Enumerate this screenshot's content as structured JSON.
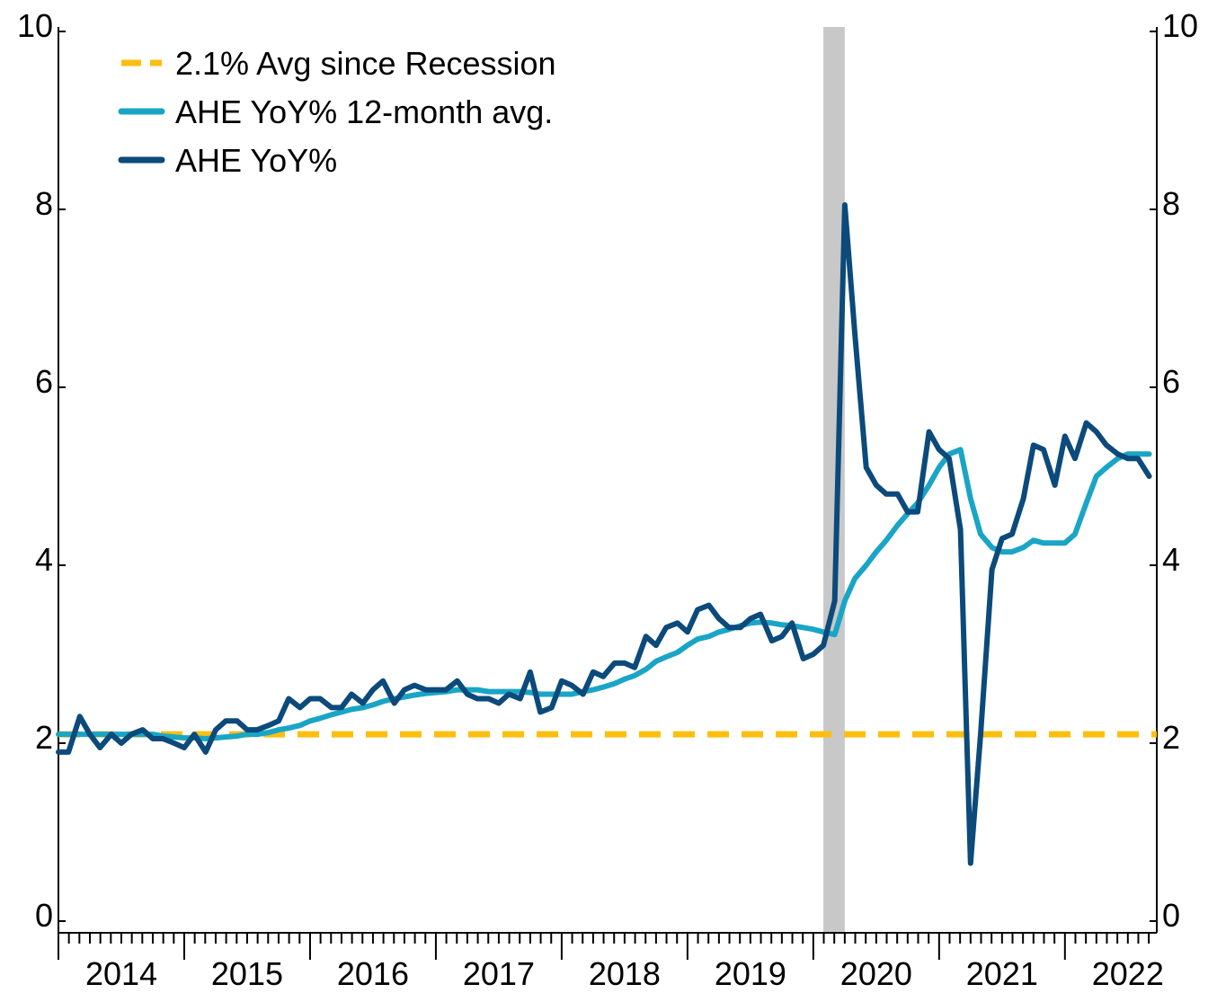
{
  "chart_data": {
    "type": "line",
    "xlim": [
      2014,
      2022.73
    ],
    "xticks": [
      2014,
      2015,
      2016,
      2017,
      2018,
      2019,
      2020,
      2021,
      2022
    ],
    "ylim": [
      0,
      10
    ],
    "yticks": [
      0,
      2,
      4,
      6,
      8,
      10
    ],
    "y2lim": [
      0,
      10
    ],
    "y2ticks": [
      0,
      2,
      4,
      6,
      8,
      10
    ],
    "legend": "upper left",
    "recession_band": {
      "x": [
        2020.08,
        2020.25
      ],
      "color": "#c8c8c8"
    },
    "hline": {
      "name": "2.1% Avg since Recession",
      "value": 2.1,
      "color": "#fcbf0f",
      "dashed": true
    },
    "x": [
      2014.0,
      2014.08,
      2014.17,
      2014.25,
      2014.33,
      2014.42,
      2014.5,
      2014.58,
      2014.67,
      2014.75,
      2014.83,
      2014.92,
      2015.0,
      2015.08,
      2015.17,
      2015.25,
      2015.33,
      2015.42,
      2015.5,
      2015.58,
      2015.67,
      2015.75,
      2015.83,
      2015.92,
      2016.0,
      2016.08,
      2016.17,
      2016.25,
      2016.33,
      2016.42,
      2016.5,
      2016.58,
      2016.67,
      2016.75,
      2016.83,
      2016.92,
      2017.0,
      2017.08,
      2017.17,
      2017.25,
      2017.33,
      2017.42,
      2017.5,
      2017.58,
      2017.67,
      2017.75,
      2017.83,
      2017.92,
      2018.0,
      2018.08,
      2018.17,
      2018.25,
      2018.33,
      2018.42,
      2018.5,
      2018.58,
      2018.67,
      2018.75,
      2018.83,
      2018.92,
      2019.0,
      2019.08,
      2019.17,
      2019.25,
      2019.33,
      2019.42,
      2019.5,
      2019.58,
      2019.67,
      2019.75,
      2019.83,
      2019.92,
      2020.0,
      2020.08,
      2020.17,
      2020.25,
      2020.33,
      2020.42,
      2020.5,
      2020.58,
      2020.67,
      2020.75,
      2020.83,
      2020.92,
      2021.0,
      2021.08,
      2021.17,
      2021.25,
      2021.33,
      2021.42,
      2021.5,
      2021.58,
      2021.67,
      2021.75,
      2021.83,
      2021.92,
      2022.0,
      2022.08,
      2022.17,
      2022.25,
      2022.33,
      2022.42,
      2022.5,
      2022.58,
      2022.67
    ],
    "series": [
      {
        "name": "AHE YoY% 12-month avg.",
        "color": "#1aa5c6",
        "values": [
          2.1,
          2.1,
          2.1,
          2.1,
          2.1,
          2.1,
          2.1,
          2.1,
          2.1,
          2.1,
          2.08,
          2.07,
          2.06,
          2.06,
          2.05,
          2.06,
          2.07,
          2.08,
          2.1,
          2.1,
          2.12,
          2.15,
          2.17,
          2.2,
          2.25,
          2.28,
          2.32,
          2.35,
          2.38,
          2.4,
          2.43,
          2.47,
          2.5,
          2.52,
          2.54,
          2.56,
          2.57,
          2.58,
          2.6,
          2.6,
          2.6,
          2.58,
          2.58,
          2.58,
          2.58,
          2.57,
          2.55,
          2.55,
          2.55,
          2.55,
          2.58,
          2.6,
          2.63,
          2.67,
          2.72,
          2.76,
          2.83,
          2.92,
          2.97,
          3.02,
          3.1,
          3.17,
          3.2,
          3.25,
          3.28,
          3.32,
          3.35,
          3.36,
          3.35,
          3.33,
          3.32,
          3.3,
          3.28,
          3.25,
          3.22,
          3.6,
          3.85,
          4.0,
          4.15,
          4.28,
          4.45,
          4.58,
          4.7,
          4.9,
          5.1,
          5.25,
          5.3,
          4.75,
          4.35,
          4.2,
          4.15,
          4.15,
          4.2,
          4.28,
          4.25,
          4.25,
          4.25,
          4.35,
          4.7,
          5.0,
          5.1,
          5.2,
          5.25,
          5.25,
          5.25
        ]
      },
      {
        "name": "AHE YoY%",
        "color": "#0b4a7b",
        "values": [
          1.9,
          1.9,
          2.3,
          2.1,
          1.95,
          2.1,
          2.0,
          2.1,
          2.15,
          2.05,
          2.05,
          2.0,
          1.95,
          2.1,
          1.9,
          2.15,
          2.25,
          2.25,
          2.15,
          2.15,
          2.2,
          2.25,
          2.5,
          2.4,
          2.5,
          2.5,
          2.4,
          2.4,
          2.55,
          2.45,
          2.6,
          2.7,
          2.45,
          2.6,
          2.65,
          2.6,
          2.6,
          2.6,
          2.7,
          2.55,
          2.5,
          2.5,
          2.45,
          2.55,
          2.5,
          2.8,
          2.35,
          2.4,
          2.7,
          2.65,
          2.55,
          2.8,
          2.75,
          2.9,
          2.9,
          2.85,
          3.2,
          3.1,
          3.3,
          3.35,
          3.25,
          3.5,
          3.55,
          3.4,
          3.3,
          3.3,
          3.4,
          3.45,
          3.15,
          3.2,
          3.35,
          2.95,
          3.0,
          3.1,
          3.6,
          8.05,
          6.6,
          5.1,
          4.9,
          4.8,
          4.8,
          4.6,
          4.6,
          5.5,
          5.3,
          5.2,
          4.4,
          0.65,
          2.1,
          3.95,
          4.3,
          4.35,
          4.75,
          5.35,
          5.3,
          4.9,
          5.45,
          5.2,
          5.6,
          5.5,
          5.35,
          5.25,
          5.2,
          5.2,
          5.0
        ]
      }
    ]
  }
}
